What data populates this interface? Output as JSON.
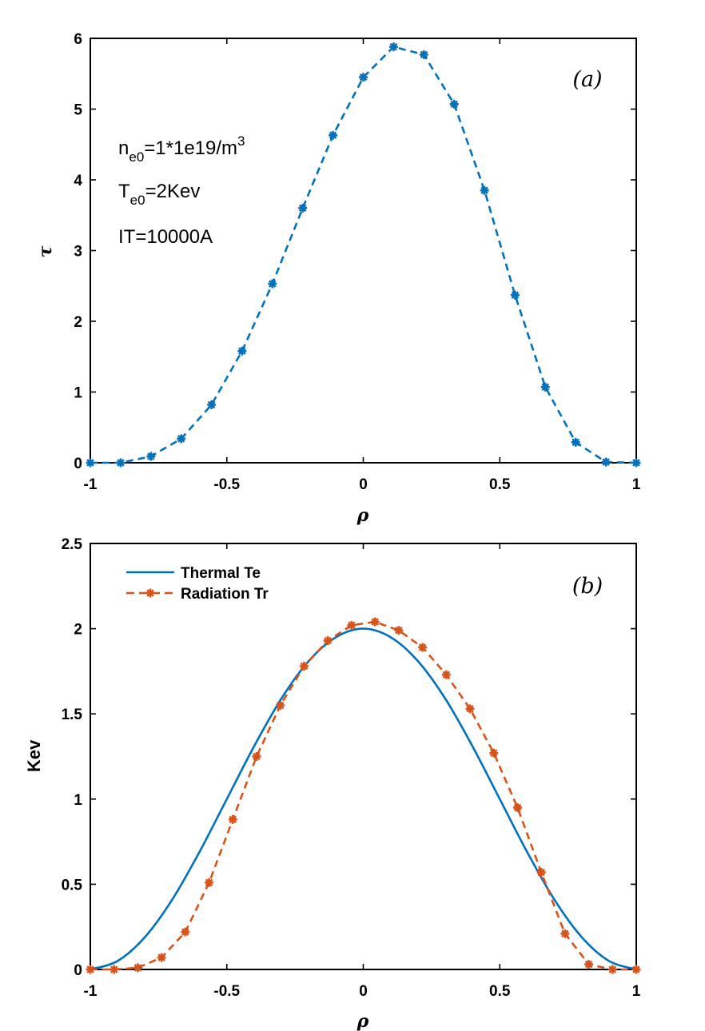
{
  "chart_data": [
    {
      "type": "line",
      "panel_label": "(a)",
      "xlabel": "ρ",
      "ylabel": "τ",
      "xlim": [
        -1,
        1
      ],
      "ylim": [
        0,
        6
      ],
      "xticks": [
        -1,
        -0.5,
        0,
        0.5,
        1
      ],
      "xtick_labels": [
        "-1",
        "-0.5",
        "0",
        "0.5",
        "1"
      ],
      "yticks": [
        0,
        1,
        2,
        3,
        4,
        5,
        6
      ],
      "ytick_labels": [
        "0",
        "1",
        "2",
        "3",
        "4",
        "5",
        "6"
      ],
      "grid": false,
      "annotations": {
        "ne_main": "n",
        "ne_sub": "e0",
        "ne_rest": "=1*1e19/m",
        "ne_sup": "3",
        "te_main": "T",
        "te_sub": "e0",
        "te_rest": "=2Kev",
        "it": "IT=10000A"
      },
      "series": [
        {
          "color": "#0072BD",
          "style": "dashed",
          "marker": "asterisk",
          "x": [
            -1,
            -0.889,
            -0.778,
            -0.667,
            -0.556,
            -0.444,
            -0.333,
            -0.222,
            -0.111,
            0,
            0.111,
            0.222,
            0.333,
            0.444,
            0.556,
            0.667,
            0.778,
            0.889,
            1
          ],
          "y": [
            0,
            0,
            0.09,
            0.34,
            0.82,
            1.58,
            2.53,
            3.6,
            4.63,
            5.45,
            5.88,
            5.77,
            5.07,
            3.85,
            2.37,
            1.07,
            0.29,
            0.01,
            0
          ]
        }
      ]
    },
    {
      "type": "line",
      "panel_label": "(b)",
      "xlabel": "ρ",
      "ylabel": "Kev",
      "xlim": [
        -1,
        1
      ],
      "ylim": [
        0,
        2.5
      ],
      "xticks": [
        -1,
        -0.5,
        0,
        0.5,
        1
      ],
      "xtick_labels": [
        "-1",
        "-0.5",
        "0",
        "0.5",
        "1"
      ],
      "yticks": [
        0,
        0.5,
        1,
        1.5,
        2,
        2.5
      ],
      "ytick_labels": [
        "0",
        "0.5",
        "1",
        "1.5",
        "2",
        "2.5"
      ],
      "grid": false,
      "legend_position": "top-left",
      "series": [
        {
          "name": "Thermal Te",
          "color": "#0072BD",
          "style": "solid",
          "marker": "none",
          "x": [
            -1,
            -0.9,
            -0.8,
            -0.7,
            -0.6,
            -0.5,
            -0.4,
            -0.3,
            -0.2,
            -0.1,
            0,
            0.1,
            0.2,
            0.3,
            0.4,
            0.5,
            0.6,
            0.7,
            0.8,
            0.9,
            1
          ],
          "y": [
            0,
            0.05,
            0.19,
            0.41,
            0.69,
            1.0,
            1.31,
            1.59,
            1.81,
            1.95,
            2.0,
            1.95,
            1.81,
            1.59,
            1.31,
            1.0,
            0.69,
            0.41,
            0.19,
            0.05,
            0
          ]
        },
        {
          "name": "Radiation Tr",
          "color": "#D95319",
          "style": "dashed",
          "marker": "asterisk",
          "x": [
            -1,
            -0.913,
            -0.826,
            -0.739,
            -0.652,
            -0.565,
            -0.478,
            -0.391,
            -0.304,
            -0.217,
            -0.13,
            -0.043,
            0.043,
            0.13,
            0.217,
            0.304,
            0.391,
            0.478,
            0.565,
            0.652,
            0.739,
            0.826,
            0.913,
            1
          ],
          "y": [
            0,
            0,
            0.01,
            0.07,
            0.22,
            0.51,
            0.88,
            1.25,
            1.55,
            1.78,
            1.93,
            2.02,
            2.04,
            1.99,
            1.89,
            1.73,
            1.53,
            1.27,
            0.95,
            0.57,
            0.21,
            0.03,
            0,
            0
          ]
        }
      ]
    }
  ]
}
